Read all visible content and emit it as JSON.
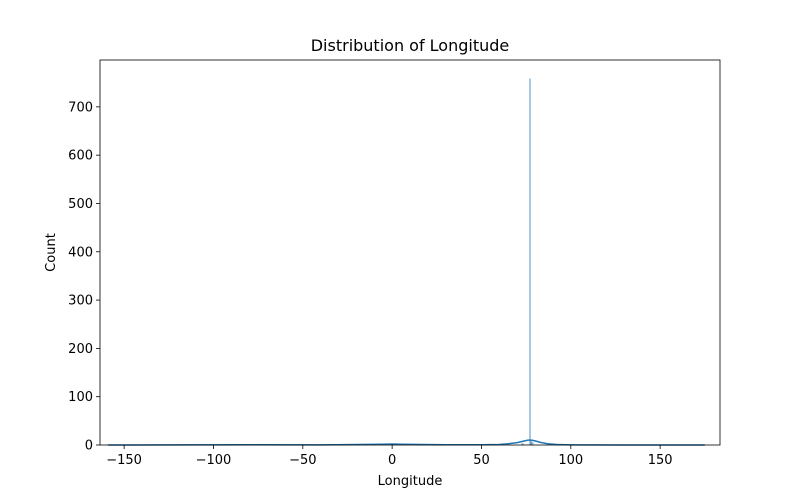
{
  "chart_data": {
    "type": "bar",
    "title": "Distribution of Longitude",
    "xlabel": "Longitude",
    "ylabel": "Count",
    "xlim": [
      -163.5,
      183.5
    ],
    "ylim": [
      0,
      797
    ],
    "xticks": [
      -150,
      -100,
      -50,
      0,
      50,
      100,
      150
    ],
    "xtick_labels": [
      "−150",
      "−100",
      "−50",
      "0",
      "50",
      "100",
      "150"
    ],
    "yticks": [
      0,
      100,
      200,
      300,
      400,
      500,
      600,
      700
    ],
    "ytick_labels": [
      "0",
      "100",
      "200",
      "300",
      "400",
      "500",
      "600",
      "700"
    ],
    "grid": false,
    "legend": "none",
    "colors": {
      "bar": "#1f77b4",
      "kde": "#1f77b4",
      "axis": "#000000"
    },
    "histogram": {
      "bins": [
        {
          "x0": 76.9,
          "x1": 77.4,
          "count": 758
        },
        {
          "x0": 77.5,
          "x1": 78.0,
          "count": 8
        },
        {
          "x0": 78.0,
          "x1": 79.0,
          "count": 5
        },
        {
          "x0": 72.5,
          "x1": 73.5,
          "count": 3
        },
        {
          "x0": -1.0,
          "x1": 1.0,
          "count": 2
        }
      ]
    },
    "kde": {
      "x": [
        -159,
        -120,
        -80,
        -40,
        -5,
        0,
        5,
        30,
        50,
        60,
        65,
        70,
        73,
        76,
        78,
        80,
        83,
        87,
        92,
        100,
        130,
        175
      ],
      "y": [
        0,
        0.3,
        0.5,
        0.3,
        1.5,
        2.0,
        1.5,
        0.5,
        0.5,
        1.0,
        2.5,
        5.0,
        7.5,
        10.0,
        10.0,
        8.5,
        5.5,
        2.5,
        1.0,
        0.3,
        0,
        0
      ]
    }
  }
}
